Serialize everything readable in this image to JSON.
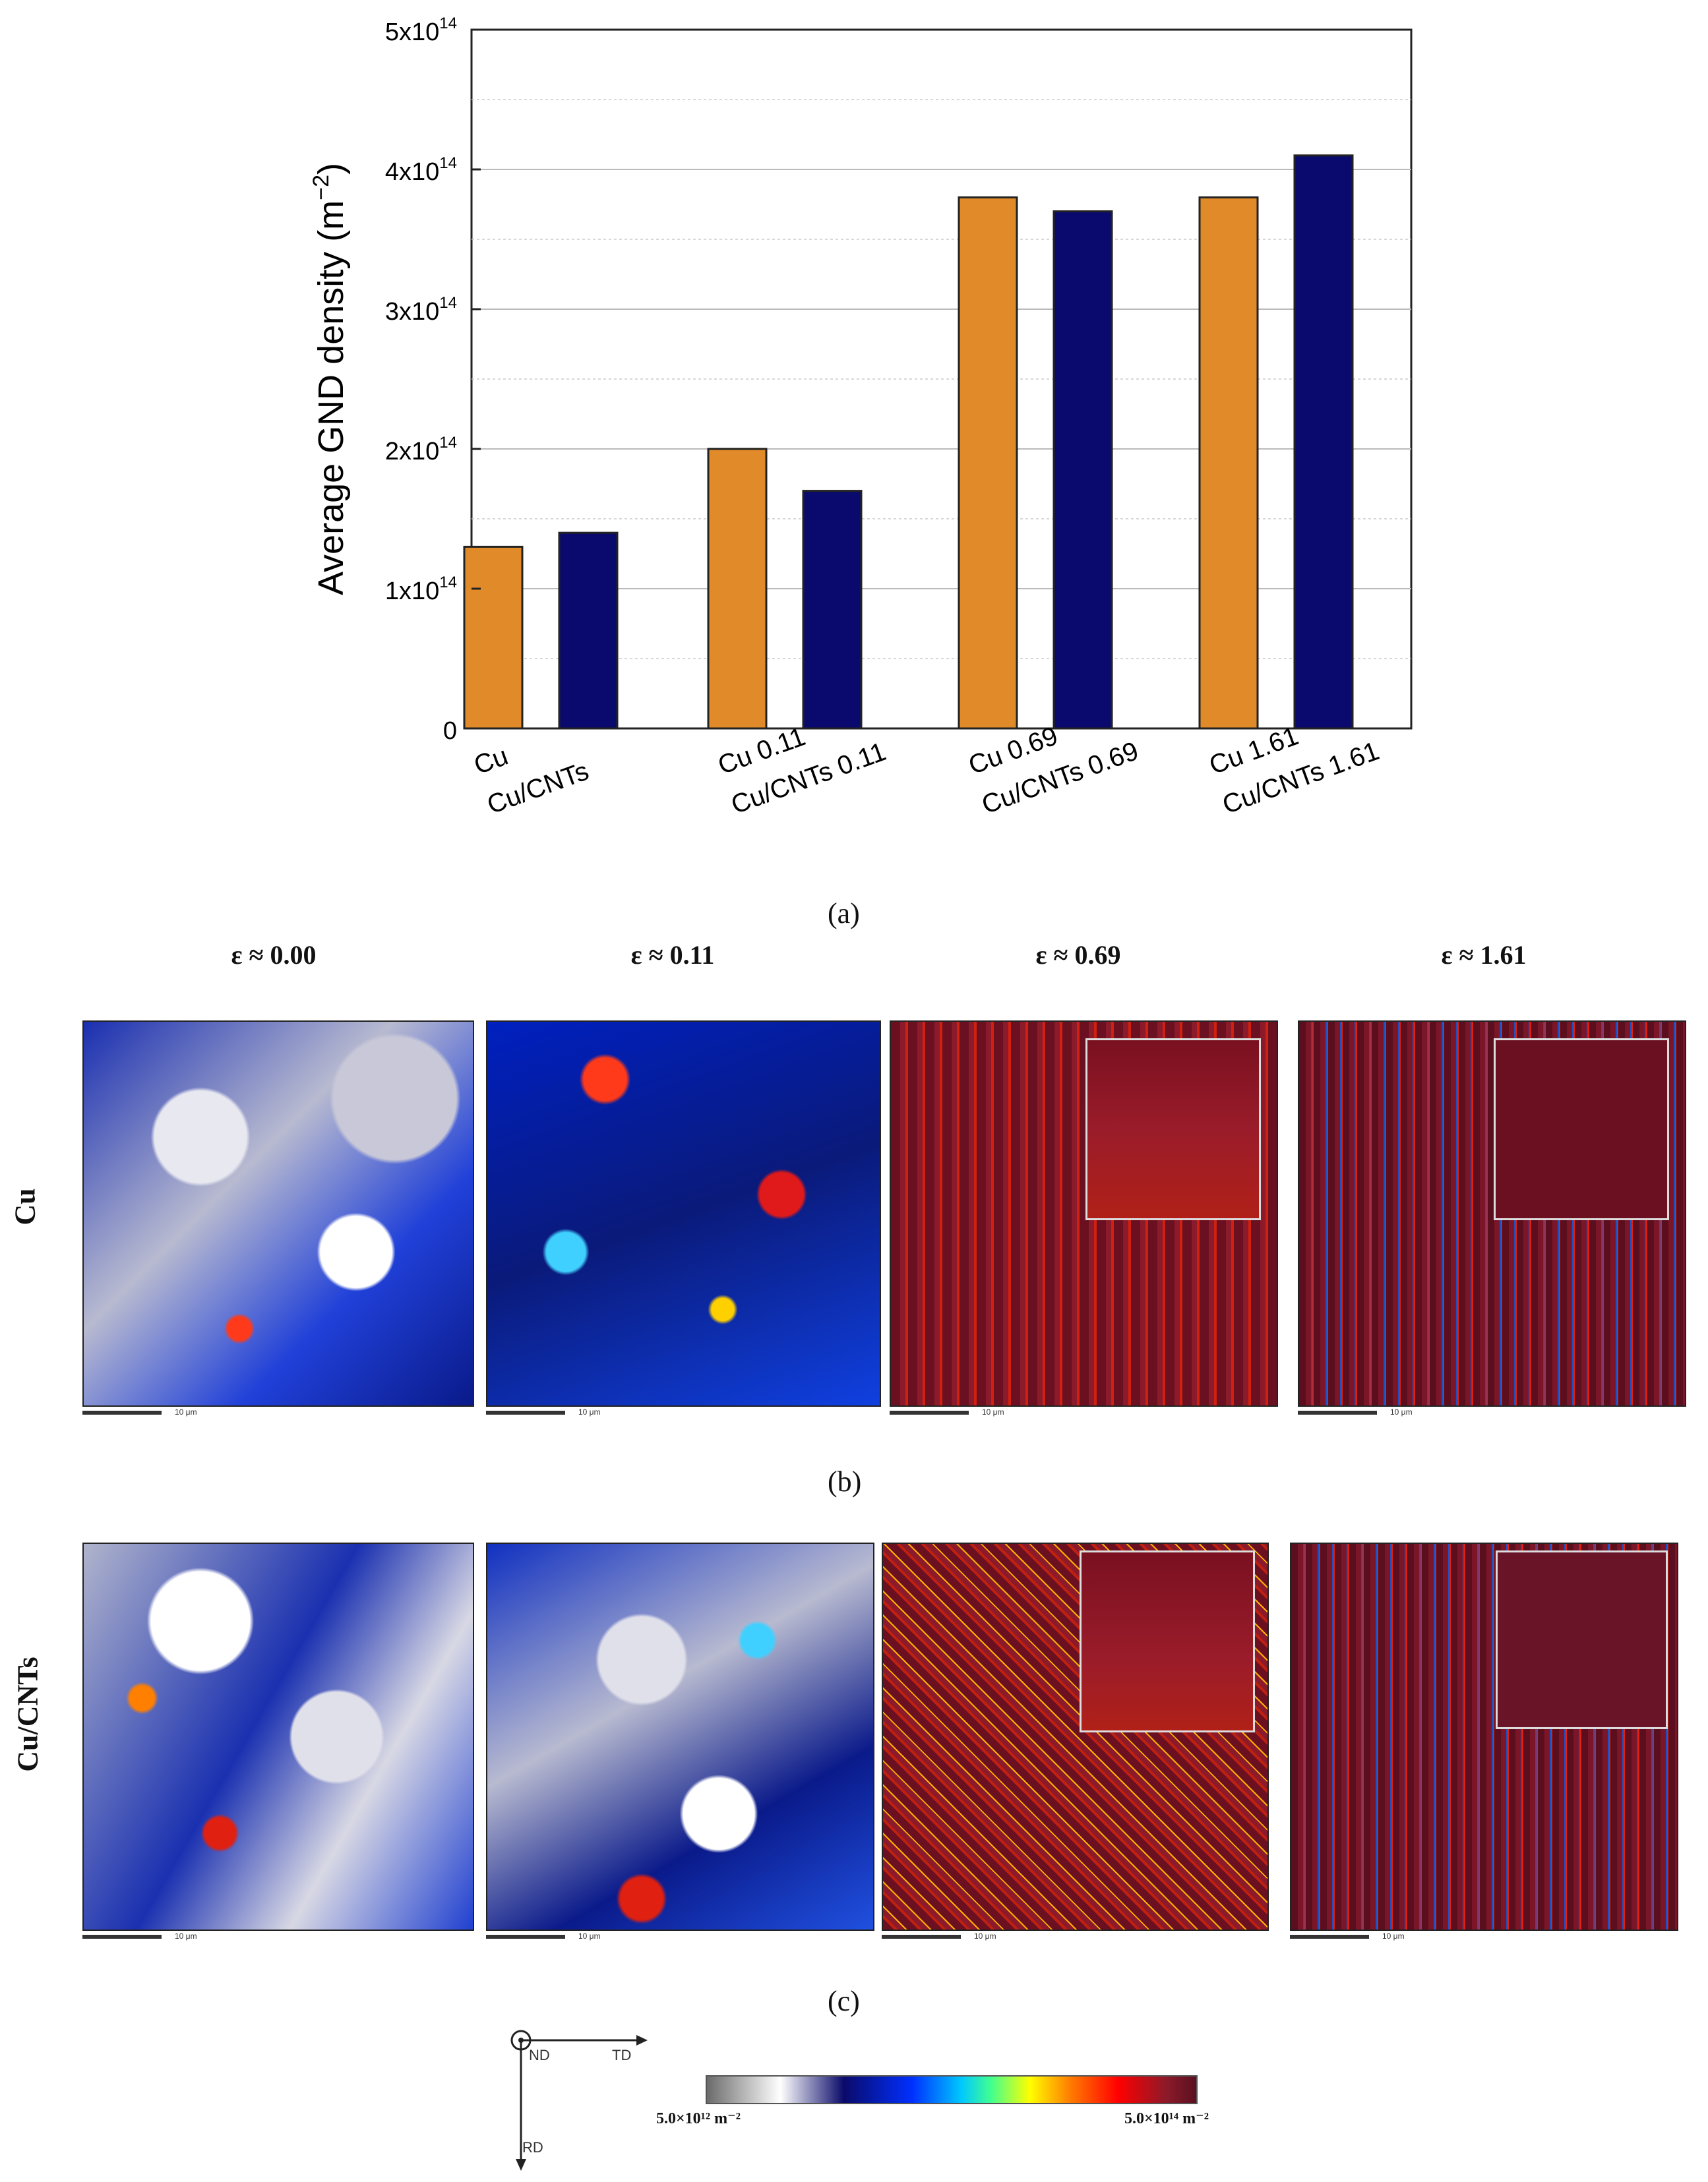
{
  "chart_data": {
    "type": "bar",
    "ylabel": "Average GND density (m",
    "ylabel_sup": "−2",
    "ylabel_close": ")",
    "ylim": [
      0,
      500000000000000.0
    ],
    "yticks": [
      {
        "value": 0,
        "label": "0",
        "sup": ""
      },
      {
        "value": 100000000000000.0,
        "label": "1x10",
        "sup": "14"
      },
      {
        "value": 200000000000000.0,
        "label": "2x10",
        "sup": "14"
      },
      {
        "value": 300000000000000.0,
        "label": "3x10",
        "sup": "14"
      },
      {
        "value": 400000000000000.0,
        "label": "4x10",
        "sup": "14"
      },
      {
        "value": 500000000000000.0,
        "label": "5x10",
        "sup": "14"
      }
    ],
    "grid": true,
    "series": [
      {
        "name": "Cu",
        "color": "#e08a2a",
        "values": [
          130000000000000.0,
          200000000000000.0,
          380000000000000.0,
          380000000000000.0
        ]
      },
      {
        "name": "Cu/CNTs",
        "color": "#0a0a6e",
        "values": [
          140000000000000.0,
          170000000000000.0,
          370000000000000.0,
          410000000000000.0
        ]
      }
    ],
    "groups": [
      {
        "labels": [
          "Cu",
          "Cu/CNTs"
        ]
      },
      {
        "labels": [
          "Cu 0.11",
          "Cu/CNTs 0.11"
        ]
      },
      {
        "labels": [
          "Cu 0.69",
          "Cu/CNTs 0.69"
        ]
      },
      {
        "labels": [
          "Cu 1.61",
          "Cu/CNTs 1.61"
        ]
      }
    ]
  },
  "panels": {
    "a": "(a)",
    "b": "(b)",
    "c": "(c)"
  },
  "strains": [
    "ε ≈ 0.00",
    "ε ≈ 0.11",
    "ε ≈ 0.69",
    "ε ≈ 1.61"
  ],
  "rows": {
    "cu": "Cu",
    "cucnts": "Cu/CNTs"
  },
  "scale_text": "10 μm",
  "axes_glyph": {
    "nd": "ND",
    "td": "TD",
    "rd": "RD"
  },
  "colorbar": {
    "min": "5.0×10¹² m⁻²",
    "max": "5.0×10¹⁴ m⁻²"
  },
  "colors": {
    "cu": "#e08a2a",
    "cucnts": "#0a0a6e"
  }
}
